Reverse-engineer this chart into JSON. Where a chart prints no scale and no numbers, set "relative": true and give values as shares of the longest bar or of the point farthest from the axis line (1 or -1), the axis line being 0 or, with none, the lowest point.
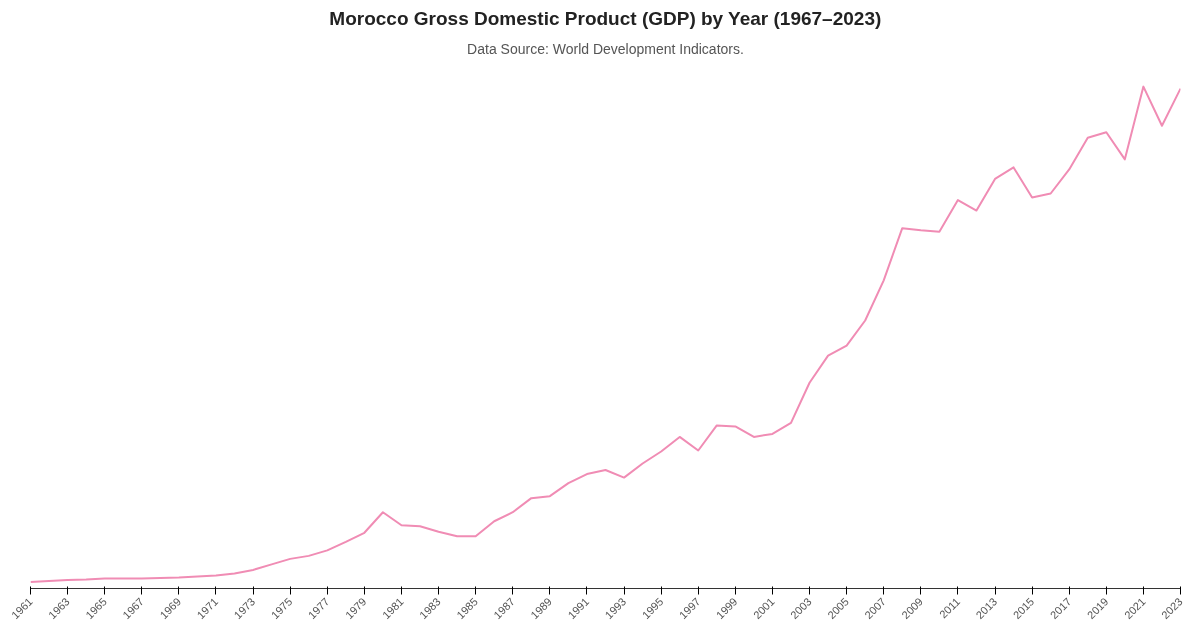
{
  "chart_data": {
    "type": "line",
    "title": "Morocco Gross Domestic Product (GDP) by Year (1967–2023)",
    "subtitle": "Data Source: World Development Indicators.",
    "relative": true,
    "x": [
      1961,
      1962,
      1963,
      1964,
      1965,
      1966,
      1967,
      1968,
      1969,
      1970,
      1971,
      1972,
      1973,
      1974,
      1975,
      1976,
      1977,
      1978,
      1979,
      1980,
      1981,
      1982,
      1983,
      1984,
      1985,
      1986,
      1987,
      1988,
      1989,
      1990,
      1991,
      1992,
      1993,
      1994,
      1995,
      1996,
      1997,
      1998,
      1999,
      2000,
      2001,
      2002,
      2003,
      2004,
      2005,
      2006,
      2007,
      2008,
      2009,
      2010,
      2011,
      2012,
      2013,
      2014,
      2015,
      2016,
      2017,
      2018,
      2019,
      2020,
      2021,
      2022,
      2023
    ],
    "xlim": [
      1961,
      2023
    ],
    "xticks": [
      1961,
      1963,
      1965,
      1967,
      1969,
      1971,
      1973,
      1975,
      1977,
      1979,
      1981,
      1983,
      1985,
      1987,
      1989,
      1991,
      1993,
      1995,
      1997,
      1999,
      2001,
      2003,
      2005,
      2007,
      2009,
      2011,
      2013,
      2015,
      2017,
      2019,
      2021,
      2023
    ],
    "series": [
      {
        "color": "#f08cb4",
        "values": [
          0.013,
          0.015,
          0.017,
          0.018,
          0.02,
          0.02,
          0.02,
          0.021,
          0.022,
          0.024,
          0.026,
          0.03,
          0.037,
          0.048,
          0.059,
          0.065,
          0.076,
          0.093,
          0.111,
          0.152,
          0.126,
          0.124,
          0.113,
          0.104,
          0.104,
          0.134,
          0.152,
          0.18,
          0.184,
          0.21,
          0.228,
          0.236,
          0.221,
          0.249,
          0.273,
          0.302,
          0.275,
          0.325,
          0.323,
          0.302,
          0.308,
          0.33,
          0.41,
          0.464,
          0.484,
          0.534,
          0.614,
          0.718,
          0.714,
          0.711,
          0.774,
          0.753,
          0.816,
          0.839,
          0.779,
          0.787,
          0.835,
          0.898,
          0.909,
          0.855,
          1,
          0.922,
          0.996
        ]
      }
    ],
    "grid": false,
    "marker": "none",
    "line_style": "solid"
  }
}
